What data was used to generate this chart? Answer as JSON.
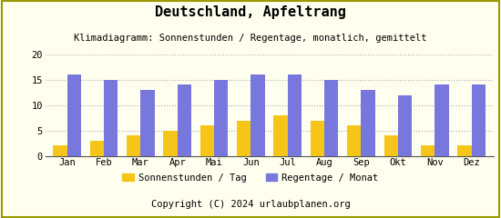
{
  "title": "Deutschland, Apfeltrang",
  "subtitle": "Klimadiagramm: Sonnenstunden / Regentage, monatlich, gemittelt",
  "months": [
    "Jan",
    "Feb",
    "Mar",
    "Apr",
    "Mai",
    "Jun",
    "Jul",
    "Aug",
    "Sep",
    "Okt",
    "Nov",
    "Dez"
  ],
  "sonnenstunden": [
    2,
    3,
    4,
    5,
    6,
    7,
    8,
    7,
    6,
    4,
    2,
    2
  ],
  "regentage": [
    16,
    15,
    13,
    14,
    15,
    16,
    16,
    15,
    13,
    12,
    14,
    14
  ],
  "bar_color_sun": "#F5C518",
  "bar_color_rain": "#7777DD",
  "background_color": "#FFFFF0",
  "border_color": "#999900",
  "footer_bg_color": "#E8A800",
  "footer_text": "Copyright (C) 2024 urlaubplanen.org",
  "legend_sun": "Sonnenstunden / Tag",
  "legend_rain": "Regentage / Monat",
  "ylim": [
    0,
    20
  ],
  "yticks": [
    0,
    5,
    10,
    15,
    20
  ],
  "grid_color": "#AAAAAA",
  "title_fontsize": 11,
  "subtitle_fontsize": 7.5,
  "tick_fontsize": 7.5,
  "legend_fontsize": 7.5,
  "footer_fontsize": 7.5
}
